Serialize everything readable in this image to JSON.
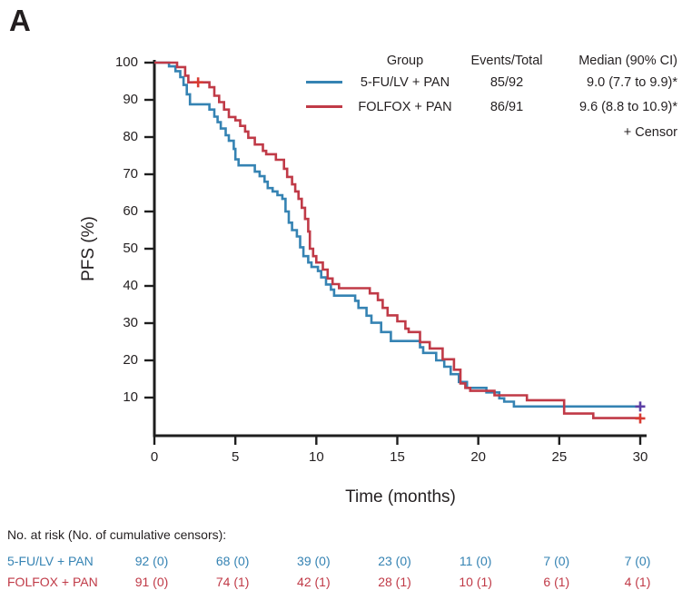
{
  "panel_label": "A",
  "colors": {
    "blue": "#3583b3",
    "red": "#c03a47",
    "blue_censor": "#5c3fa5",
    "red_censor": "#d83b33",
    "axis": "#1e1e1e",
    "text": "#231f20"
  },
  "legend": {
    "col_group": "Group",
    "col_events": "Events/Total",
    "col_median": "Median (90% CI)",
    "rows": [
      {
        "group": "5-FU/LV + PAN",
        "events_total": "85/92",
        "median": "9.0 (7.7 to 9.9)*",
        "color_key": "blue"
      },
      {
        "group": "FOLFOX + PAN",
        "events_total": "86/91",
        "median": "9.6 (8.8 to 10.9)*",
        "color_key": "red"
      }
    ],
    "censor_label": "+ Censor"
  },
  "chart_data": {
    "type": "line",
    "subtype": "kaplan-meier-step",
    "title": "",
    "xlabel": "Time (months)",
    "ylabel": "PFS (%)",
    "xlim": [
      0,
      30
    ],
    "ylim": [
      0,
      100
    ],
    "x_ticks": [
      0,
      5,
      10,
      15,
      20,
      25,
      30
    ],
    "y_ticks": [
      10,
      20,
      30,
      40,
      50,
      60,
      70,
      80,
      90,
      100
    ],
    "grid": false,
    "legend_position": "top-right",
    "series": [
      {
        "name": "5-FU/LV + PAN",
        "color_key": "blue",
        "censor_color_key": "blue_censor",
        "events_total": "85/92",
        "median_90ci": "9.0 (7.7 to 9.9)*",
        "points": [
          [
            0,
            100
          ],
          [
            0.9,
            99
          ],
          [
            1.3,
            97.7
          ],
          [
            1.6,
            96.1
          ],
          [
            1.8,
            94
          ],
          [
            2.0,
            91.5
          ],
          [
            2.2,
            88.8
          ],
          [
            3.4,
            87.4
          ],
          [
            3.7,
            85.5
          ],
          [
            3.9,
            84
          ],
          [
            4.1,
            82.3
          ],
          [
            4.4,
            80.5
          ],
          [
            4.6,
            79
          ],
          [
            4.9,
            76.8
          ],
          [
            5.0,
            74
          ],
          [
            5.2,
            72.4
          ],
          [
            6.2,
            70.7
          ],
          [
            6.5,
            69.5
          ],
          [
            6.8,
            68
          ],
          [
            7.0,
            66.3
          ],
          [
            7.3,
            65.4
          ],
          [
            7.6,
            64.4
          ],
          [
            7.9,
            63.4
          ],
          [
            8.1,
            60
          ],
          [
            8.3,
            57
          ],
          [
            8.5,
            55
          ],
          [
            8.8,
            53.3
          ],
          [
            9.0,
            50.4
          ],
          [
            9.2,
            48
          ],
          [
            9.5,
            46.3
          ],
          [
            9.7,
            45.1
          ],
          [
            10.1,
            44
          ],
          [
            10.3,
            42.3
          ],
          [
            10.6,
            40.4
          ],
          [
            10.9,
            39
          ],
          [
            11.1,
            37.4
          ],
          [
            12.4,
            36
          ],
          [
            12.6,
            34.1
          ],
          [
            13.1,
            32
          ],
          [
            13.4,
            30.1
          ],
          [
            14.0,
            27.6
          ],
          [
            14.6,
            25.2
          ],
          [
            16.4,
            23.5
          ],
          [
            16.6,
            22
          ],
          [
            17.4,
            20
          ],
          [
            17.9,
            18.3
          ],
          [
            18.3,
            16.3
          ],
          [
            18.8,
            14.2
          ],
          [
            19.3,
            12.6
          ],
          [
            20.5,
            11.4
          ],
          [
            21.3,
            9.8
          ],
          [
            21.6,
            8.9
          ],
          [
            22.2,
            7.6
          ],
          [
            30,
            7.6
          ]
        ],
        "censors": [
          [
            30,
            7.6
          ]
        ]
      },
      {
        "name": "FOLFOX + PAN",
        "color_key": "red",
        "censor_color_key": "red_censor",
        "events_total": "86/91",
        "median_90ci": "9.6 (8.8 to 10.9)*",
        "points": [
          [
            0,
            100
          ],
          [
            1.4,
            98.8
          ],
          [
            1.9,
            96.5
          ],
          [
            2.1,
            94.7
          ],
          [
            3.4,
            93.4
          ],
          [
            3.7,
            91.1
          ],
          [
            4.0,
            89.4
          ],
          [
            4.3,
            87.4
          ],
          [
            4.6,
            85.4
          ],
          [
            5.0,
            84.5
          ],
          [
            5.3,
            83
          ],
          [
            5.6,
            81.5
          ],
          [
            5.8,
            79.8
          ],
          [
            6.2,
            78
          ],
          [
            6.7,
            76.3
          ],
          [
            6.9,
            75.4
          ],
          [
            7.5,
            73.9
          ],
          [
            8.0,
            71.5
          ],
          [
            8.2,
            69.3
          ],
          [
            8.5,
            67.3
          ],
          [
            8.7,
            65.4
          ],
          [
            8.9,
            63.4
          ],
          [
            9.1,
            61
          ],
          [
            9.3,
            58
          ],
          [
            9.5,
            54.6
          ],
          [
            9.6,
            50
          ],
          [
            9.8,
            48
          ],
          [
            10.0,
            46.3
          ],
          [
            10.4,
            44.4
          ],
          [
            10.7,
            42
          ],
          [
            11.0,
            40.5
          ],
          [
            11.4,
            39.4
          ],
          [
            13.3,
            38
          ],
          [
            13.8,
            36.2
          ],
          [
            14.1,
            34.1
          ],
          [
            14.4,
            32.1
          ],
          [
            15.0,
            30.5
          ],
          [
            15.5,
            28.5
          ],
          [
            15.7,
            27.6
          ],
          [
            16.4,
            24.9
          ],
          [
            17.0,
            23.2
          ],
          [
            17.8,
            20.3
          ],
          [
            18.5,
            17.5
          ],
          [
            18.9,
            13.8
          ],
          [
            19.2,
            12.6
          ],
          [
            19.5,
            11.8
          ],
          [
            21.0,
            10.6
          ],
          [
            23.0,
            9.3
          ],
          [
            25.3,
            5.7
          ],
          [
            27.1,
            4.5
          ],
          [
            30,
            4.4
          ]
        ],
        "censors": [
          [
            2.7,
            94.7
          ],
          [
            30,
            4.4
          ]
        ]
      }
    ]
  },
  "risk_table": {
    "header": "No. at risk (No. of cumulative censors):",
    "times": [
      0,
      5,
      10,
      15,
      20,
      25,
      30
    ],
    "rows": [
      {
        "label": "5-FU/LV + PAN",
        "color_key": "blue",
        "values": [
          "92 (0)",
          "68 (0)",
          "39 (0)",
          "23 (0)",
          "11 (0)",
          "7 (0)",
          "7 (0)"
        ]
      },
      {
        "label": "FOLFOX + PAN",
        "color_key": "red",
        "values": [
          "91 (0)",
          "74 (1)",
          "42 (1)",
          "28 (1)",
          "10 (1)",
          "6 (1)",
          "4 (1)"
        ]
      }
    ]
  }
}
